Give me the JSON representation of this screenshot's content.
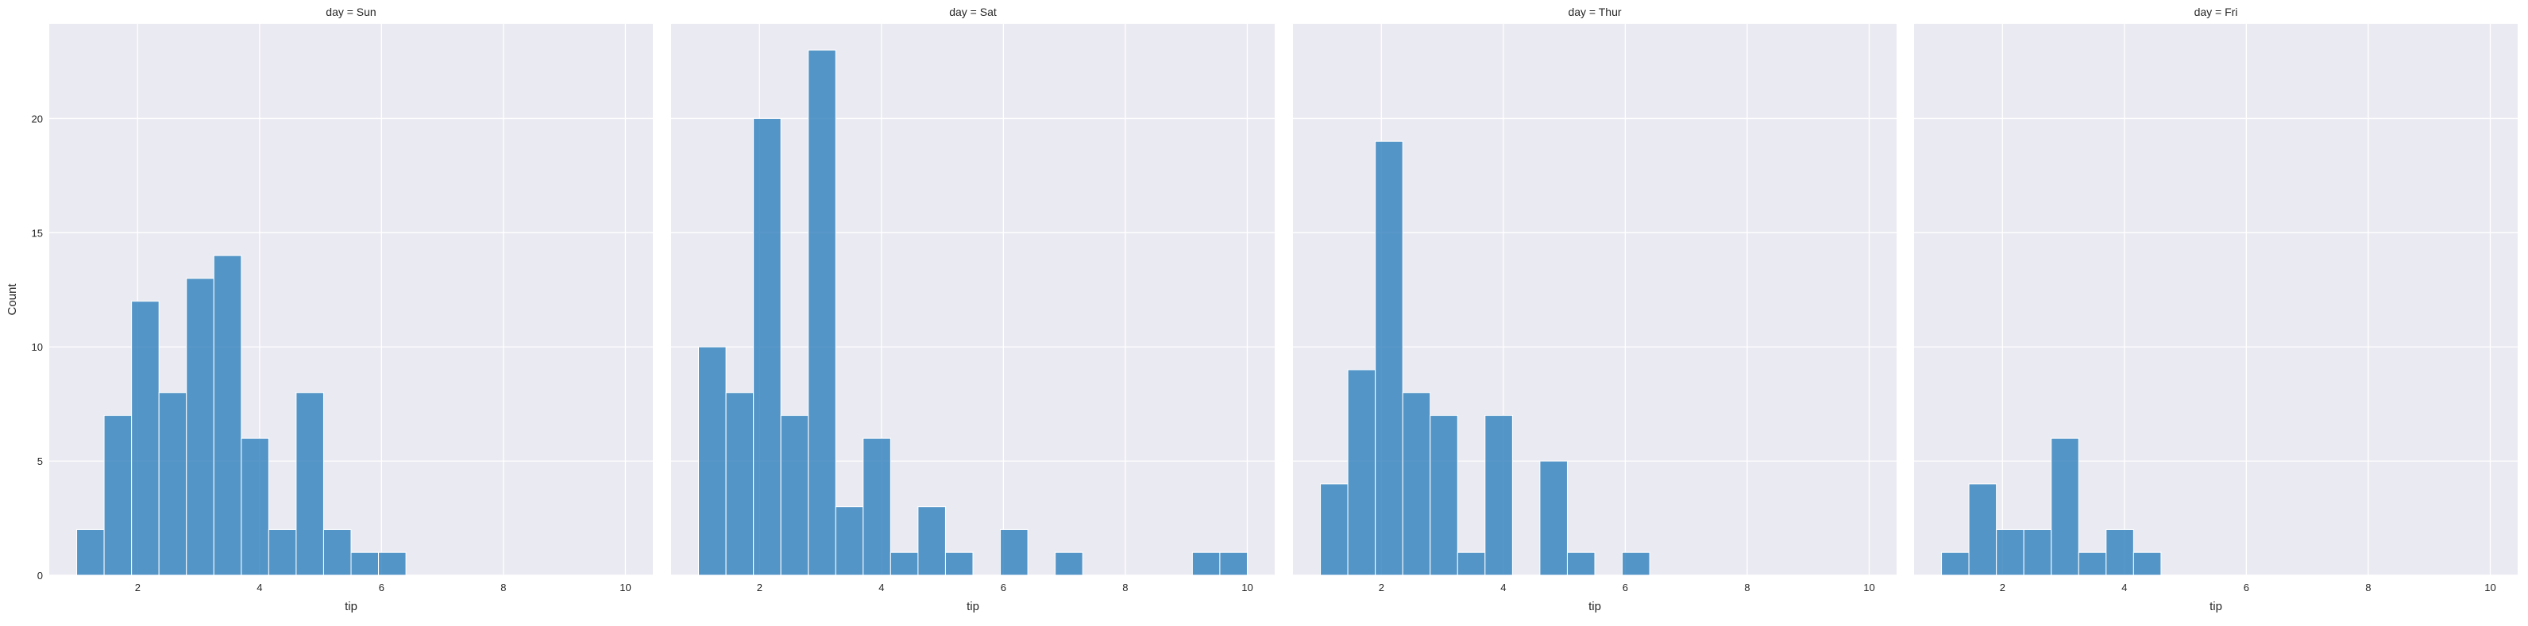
{
  "chart_data": {
    "type": "bar",
    "layout": "facet-grid",
    "bin_start": 1.0,
    "bin_width": 0.45,
    "xlim": [
      0.55,
      10.45
    ],
    "ylim": [
      0,
      24.15
    ],
    "x_ticks": [
      2,
      4,
      6,
      8,
      10
    ],
    "x_tick_labels": [
      "2",
      "4",
      "6",
      "8",
      "10"
    ],
    "y_ticks": [
      0,
      5,
      10,
      15,
      20
    ],
    "y_tick_labels": [
      "0",
      "5",
      "10",
      "15",
      "20"
    ],
    "xlabel": "tip",
    "ylabel": "Count",
    "grid": true,
    "bar_color": "#3a86bf",
    "background_color": "#eaeaf2",
    "grid_color": "#ffffff",
    "facets": [
      {
        "title": "day = Sun",
        "counts": [
          2,
          7,
          12,
          8,
          13,
          14,
          6,
          2,
          8,
          2,
          1,
          1,
          0,
          0,
          0,
          0,
          0,
          0,
          0,
          0
        ]
      },
      {
        "title": "day = Sat",
        "counts": [
          10,
          8,
          20,
          7,
          23,
          3,
          6,
          1,
          3,
          1,
          0,
          2,
          0,
          1,
          0,
          0,
          0,
          0,
          1,
          1
        ]
      },
      {
        "title": "day = Thur",
        "counts": [
          4,
          9,
          19,
          8,
          7,
          1,
          7,
          0,
          5,
          1,
          0,
          1,
          0,
          0,
          0,
          0,
          0,
          0,
          0,
          0
        ]
      },
      {
        "title": "day = Fri",
        "counts": [
          1,
          4,
          2,
          2,
          6,
          1,
          2,
          1,
          0,
          0,
          0,
          0,
          0,
          0,
          0,
          0,
          0,
          0,
          0,
          0
        ]
      }
    ]
  }
}
